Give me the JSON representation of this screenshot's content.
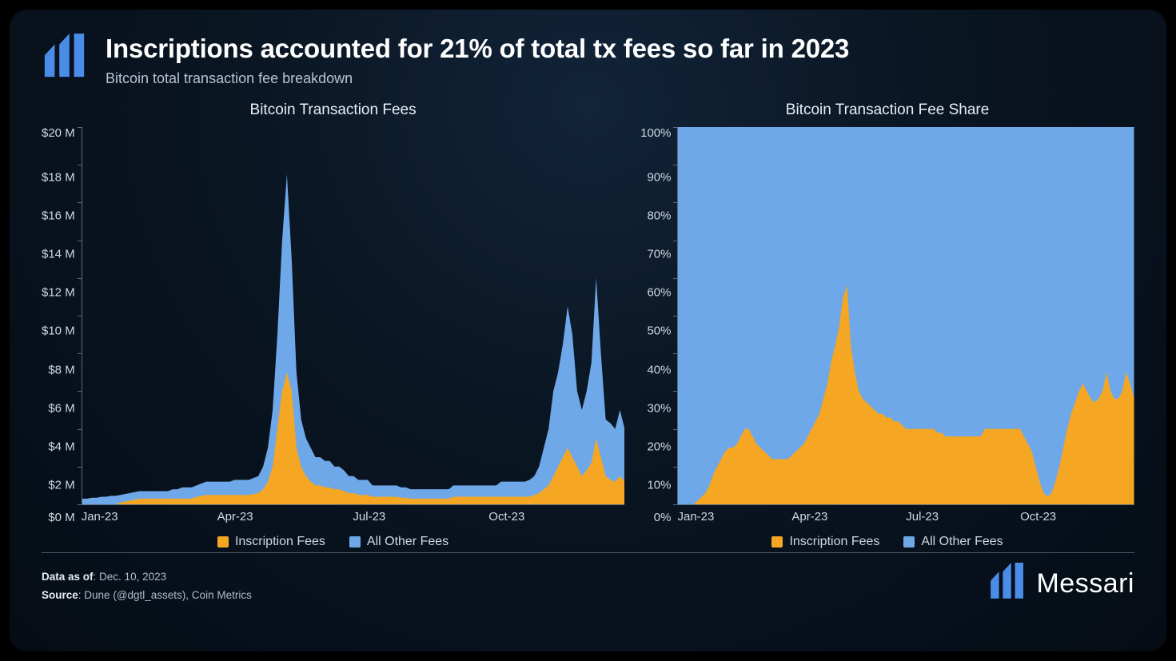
{
  "header": {
    "title": "Inscriptions accounted for 21% of total tx fees so far in 2023",
    "subtitle": "Bitcoin total transaction fee breakdown"
  },
  "colors": {
    "inscription": "#f5a623",
    "other": "#6fa8e8",
    "axis": "#5a6a7d",
    "text": "#d0d8e2",
    "bg_top": "#12243a",
    "bg_bottom": "#050c15"
  },
  "legend": {
    "inscription": "Inscription Fees",
    "other": "All Other Fees"
  },
  "chart_left": {
    "type": "stacked-area",
    "title": "Bitcoin Transaction Fees",
    "y_ticks": [
      "$20 M",
      "$18 M",
      "$16 M",
      "$14 M",
      "$12 M",
      "$10 M",
      "$8 M",
      "$6 M",
      "$4 M",
      "$2 M",
      "$0 M"
    ],
    "ylim": [
      0,
      20
    ],
    "x_ticks": [
      "Jan-23",
      "Apr-23",
      "Jul-23",
      "Oct-23"
    ],
    "n_months": 12,
    "inscription_values": [
      0,
      0,
      0,
      0,
      0,
      0,
      0,
      0,
      0.1,
      0.15,
      0.2,
      0.25,
      0.3,
      0.3,
      0.3,
      0.3,
      0.3,
      0.3,
      0.3,
      0.3,
      0.3,
      0.3,
      0.3,
      0.3,
      0.4,
      0.45,
      0.5,
      0.5,
      0.5,
      0.5,
      0.5,
      0.5,
      0.5,
      0.5,
      0.5,
      0.5,
      0.55,
      0.6,
      0.8,
      1.2,
      2,
      4,
      6,
      7,
      6,
      3,
      2,
      1.5,
      1.2,
      1,
      1,
      0.9,
      0.9,
      0.8,
      0.8,
      0.7,
      0.6,
      0.6,
      0.5,
      0.5,
      0.5,
      0.4,
      0.4,
      0.4,
      0.4,
      0.4,
      0.4,
      0.35,
      0.35,
      0.3,
      0.3,
      0.3,
      0.3,
      0.3,
      0.3,
      0.3,
      0.3,
      0.3,
      0.4,
      0.4,
      0.4,
      0.4,
      0.4,
      0.4,
      0.4,
      0.4,
      0.4,
      0.4,
      0.4,
      0.4,
      0.4,
      0.4,
      0.4,
      0.4,
      0.4,
      0.5,
      0.6,
      0.8,
      1,
      1.5,
      2,
      2.5,
      3,
      2.5,
      2,
      1.5,
      1.8,
      2.2,
      3.5,
      2.5,
      1.5,
      1.3,
      1.2,
      1.5,
      1.2
    ],
    "total_values": [
      0.3,
      0.3,
      0.35,
      0.35,
      0.4,
      0.4,
      0.45,
      0.45,
      0.5,
      0.55,
      0.6,
      0.65,
      0.7,
      0.7,
      0.7,
      0.7,
      0.7,
      0.7,
      0.7,
      0.8,
      0.8,
      0.9,
      0.9,
      0.9,
      1,
      1.1,
      1.2,
      1.2,
      1.2,
      1.2,
      1.2,
      1.2,
      1.3,
      1.3,
      1.3,
      1.3,
      1.4,
      1.5,
      2,
      3,
      5,
      9,
      14,
      17.5,
      13,
      7,
      4.5,
      3.5,
      3,
      2.5,
      2.5,
      2.3,
      2.3,
      2,
      2,
      1.8,
      1.5,
      1.5,
      1.3,
      1.3,
      1.3,
      1,
      1,
      1,
      1,
      1,
      1,
      0.9,
      0.9,
      0.8,
      0.8,
      0.8,
      0.8,
      0.8,
      0.8,
      0.8,
      0.8,
      0.8,
      1,
      1,
      1,
      1,
      1,
      1,
      1,
      1,
      1,
      1,
      1.2,
      1.2,
      1.2,
      1.2,
      1.2,
      1.2,
      1.3,
      1.5,
      2,
      3,
      4,
      6,
      7,
      8.5,
      10.5,
      9,
      6,
      5,
      6,
      7.5,
      12,
      8,
      4.5,
      4.3,
      4,
      5,
      4
    ]
  },
  "chart_right": {
    "type": "stacked-area-100",
    "title": "Bitcoin Transaction Fee Share",
    "y_ticks": [
      "100%",
      "90%",
      "80%",
      "70%",
      "60%",
      "50%",
      "40%",
      "30%",
      "20%",
      "10%",
      "0%"
    ],
    "ylim": [
      0,
      100
    ],
    "x_ticks": [
      "Jan-23",
      "Apr-23",
      "Jul-23",
      "Oct-23"
    ],
    "inscription_pct": [
      0,
      0,
      0,
      0,
      0,
      1,
      2,
      3,
      5,
      8,
      10,
      12,
      14,
      15,
      15,
      16,
      18,
      20,
      20,
      18,
      16,
      15,
      14,
      13,
      12,
      12,
      12,
      12,
      12,
      13,
      14,
      15,
      16,
      18,
      20,
      22,
      24,
      28,
      32,
      38,
      42,
      47,
      55,
      58,
      42,
      35,
      30,
      28,
      27,
      26,
      25,
      24,
      24,
      23,
      23,
      22,
      22,
      21,
      20,
      20,
      20,
      20,
      20,
      20,
      20,
      20,
      19,
      19,
      18,
      18,
      18,
      18,
      18,
      18,
      18,
      18,
      18,
      18,
      20,
      20,
      20,
      20,
      20,
      20,
      20,
      20,
      20,
      20,
      18,
      16,
      14,
      10,
      6,
      3,
      2,
      3,
      6,
      10,
      15,
      20,
      24,
      27,
      30,
      32,
      30,
      28,
      27,
      28,
      30,
      35,
      30,
      28,
      28,
      30,
      35,
      32,
      28
    ]
  },
  "footer": {
    "data_as_of_label": "Data as of",
    "data_as_of": "Dec. 10, 2023",
    "source_label": "Source",
    "source": "Dune (@dgtl_assets), Coin Metrics",
    "brand": "Messari"
  }
}
